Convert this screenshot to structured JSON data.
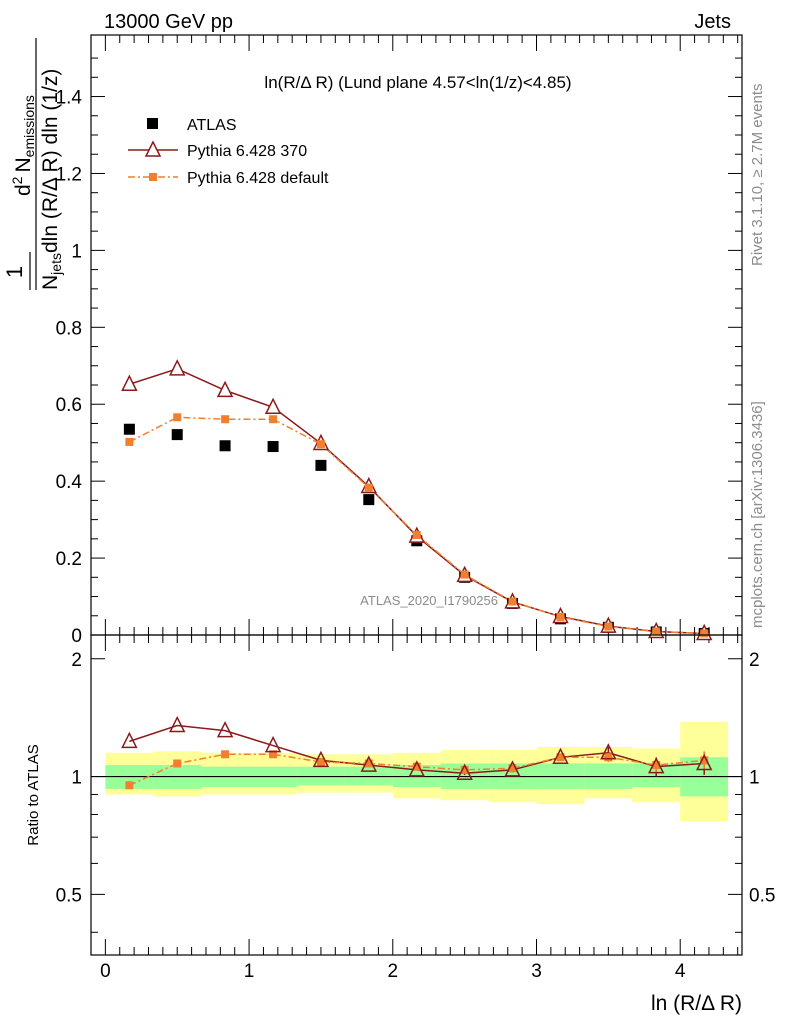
{
  "chart_data": {
    "type": "scatter",
    "header_left": "13000 GeV pp",
    "header_right": "Jets",
    "title": "ln(R/Δ R) (Lund plane 4.57<ln(1/z)<4.85)",
    "ylabel": "1/N_jets d²N_emissions / dln(R/Δ R) dln(1/z)",
    "ylabel_parts": {
      "one": "1",
      "njets_n": "N",
      "njets_sub": "jets",
      "deriv_den": "dln (R/Δ R) dln (1/z)",
      "num_d": "d",
      "num_exp": "2",
      "num_n": "N",
      "num_sub": "emissions"
    },
    "xlabel": "ln (R/Δ R)",
    "ratio_ylabel": "Ratio to ATLAS",
    "watermark": "ATLAS_2020_I1790256",
    "side_label_rivet": "Rivet 3.1.10, ≥ 2.7M events",
    "side_label_mcplots": "mcplots.cern.ch [arXiv:1306.3436]",
    "xlim": [
      -0.1,
      4.43
    ],
    "ylim": [
      0,
      1.56
    ],
    "ratio_ylim": [
      0.35,
      2.3
    ],
    "x_ticks": [
      "0",
      "1",
      "2",
      "3",
      "4"
    ],
    "y_ticks": [
      "0",
      "0.2",
      "0.4",
      "0.6",
      "0.8",
      "1",
      "1.2",
      "1.4"
    ],
    "ratio_y_ticks": [
      "0.5",
      "1",
      "2"
    ],
    "x": [
      0.167,
      0.5,
      0.833,
      1.167,
      1.5,
      1.833,
      2.167,
      2.5,
      2.833,
      3.167,
      3.5,
      3.833,
      4.167
    ],
    "series": [
      {
        "name": "ATLAS",
        "color": "#000000",
        "values": [
          0.535,
          0.521,
          0.492,
          0.49,
          0.441,
          0.352,
          0.245,
          0.15,
          0.082,
          0.042,
          0.02,
          0.008,
          0.004
        ]
      },
      {
        "name": "Pythia 6.428 370",
        "color": "#8b1a1a",
        "values": [
          0.652,
          0.692,
          0.636,
          0.592,
          0.498,
          0.386,
          0.257,
          0.155,
          0.086,
          0.048,
          0.023,
          0.009,
          0.004
        ]
      },
      {
        "name": "Pythia 6.428 default",
        "color": "#f07f2f",
        "values": [
          0.502,
          0.566,
          0.561,
          0.561,
          0.496,
          0.383,
          0.26,
          0.157,
          0.087,
          0.047,
          0.022,
          0.009,
          0.004
        ]
      }
    ],
    "ratio_series": [
      {
        "name": "Pythia 6.428 370",
        "color": "#8b1a1a",
        "values": [
          1.23,
          1.35,
          1.31,
          1.2,
          1.1,
          1.07,
          1.04,
          1.02,
          1.04,
          1.12,
          1.15,
          1.06,
          1.08
        ],
        "errors": [
          0,
          0,
          0,
          0,
          0,
          0,
          0,
          0.01,
          0.015,
          0.02,
          0.04,
          0.06,
          0.07
        ]
      },
      {
        "name": "Pythia 6.428 default",
        "color": "#f07f2f",
        "values": [
          0.95,
          1.08,
          1.14,
          1.14,
          1.09,
          1.08,
          1.06,
          1.04,
          1.05,
          1.12,
          1.12,
          1.07,
          1.1
        ],
        "errors": [
          0,
          0,
          0,
          0,
          0,
          0,
          0,
          0.01,
          0.015,
          0.02,
          0.03,
          0.05,
          0.06
        ]
      }
    ],
    "ratio_band_bins": [
      0,
      0.333,
      0.667,
      1.0,
      1.333,
      1.667,
      2.0,
      2.333,
      2.667,
      3.0,
      3.333,
      3.667,
      4.0,
      4.333
    ],
    "ratio_band_inner": [
      [
        0.93,
        1.07
      ],
      [
        0.93,
        1.07
      ],
      [
        0.94,
        1.06
      ],
      [
        0.94,
        1.06
      ],
      [
        0.95,
        1.06
      ],
      [
        0.95,
        1.06
      ],
      [
        0.94,
        1.07
      ],
      [
        0.93,
        1.08
      ],
      [
        0.93,
        1.08
      ],
      [
        0.93,
        1.08
      ],
      [
        0.93,
        1.08
      ],
      [
        0.94,
        1.08
      ],
      [
        0.89,
        1.12
      ]
    ],
    "ratio_band_outer": [
      [
        0.9,
        1.15
      ],
      [
        0.89,
        1.16
      ],
      [
        0.9,
        1.15
      ],
      [
        0.9,
        1.15
      ],
      [
        0.91,
        1.14
      ],
      [
        0.91,
        1.14
      ],
      [
        0.88,
        1.15
      ],
      [
        0.87,
        1.17
      ],
      [
        0.86,
        1.17
      ],
      [
        0.85,
        1.19
      ],
      [
        0.88,
        1.19
      ],
      [
        0.86,
        1.18
      ],
      [
        0.77,
        1.38
      ]
    ],
    "band_colors": {
      "inner": "#99ff99",
      "outer": "#ffff99"
    },
    "legend": [
      "ATLAS",
      "Pythia 6.428 370",
      "Pythia 6.428 default"
    ],
    "legend_position": "top-left"
  }
}
